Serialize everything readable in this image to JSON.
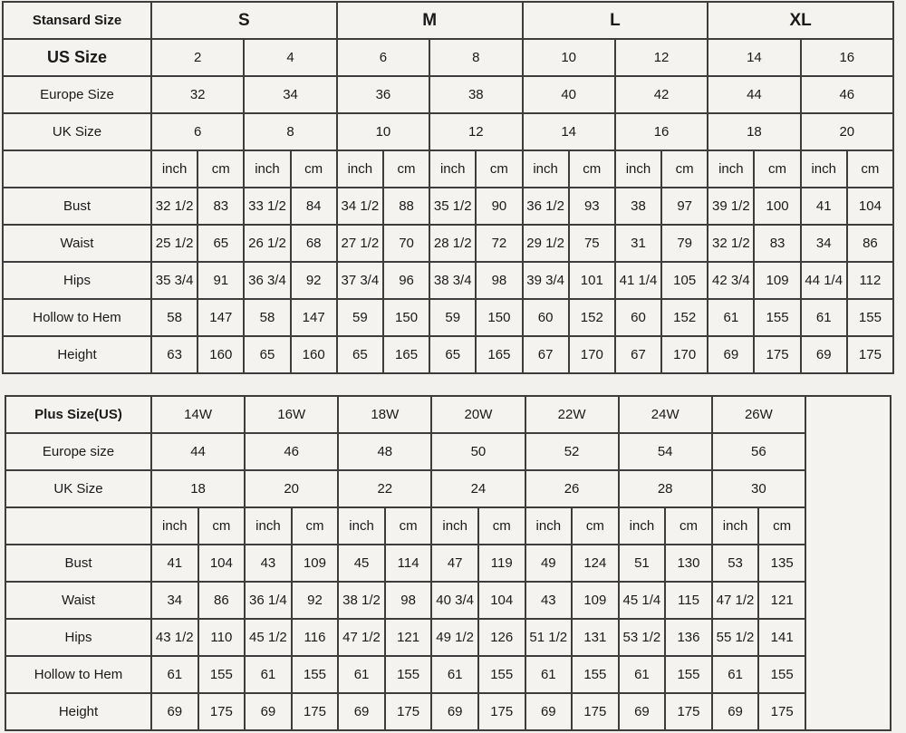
{
  "colors": {
    "page_background": "#f2f1ee",
    "cell_background": "#f4f3f0",
    "border": "#3d3d3d",
    "text": "#1a1a1a"
  },
  "chart_data": [
    {
      "type": "table",
      "name": "standard-size-chart",
      "title": "Stansard Size",
      "size_groups": [
        "S",
        "M",
        "L",
        "XL"
      ],
      "size_rows": [
        {
          "label": "US Size",
          "bold": true,
          "values": [
            "2",
            "4",
            "6",
            "8",
            "10",
            "12",
            "14",
            "16"
          ]
        },
        {
          "label": "Europe Size",
          "bold": false,
          "values": [
            "32",
            "34",
            "36",
            "38",
            "40",
            "42",
            "44",
            "46"
          ]
        },
        {
          "label": "UK Size",
          "bold": false,
          "values": [
            "6",
            "8",
            "10",
            "12",
            "14",
            "16",
            "18",
            "20"
          ]
        }
      ],
      "unit_labels": [
        "inch",
        "cm"
      ],
      "measurement_rows": [
        {
          "label": "Bust",
          "inch": [
            "32 1/2",
            "33 1/2",
            "34 1/2",
            "35 1/2",
            "36 1/2",
            "38",
            "39 1/2",
            "41"
          ],
          "cm": [
            "83",
            "84",
            "88",
            "90",
            "93",
            "97",
            "100",
            "104"
          ]
        },
        {
          "label": "Waist",
          "inch": [
            "25 1/2",
            "26 1/2",
            "27 1/2",
            "28 1/2",
            "29 1/2",
            "31",
            "32 1/2",
            "34"
          ],
          "cm": [
            "65",
            "68",
            "70",
            "72",
            "75",
            "79",
            "83",
            "86"
          ]
        },
        {
          "label": "Hips",
          "inch": [
            "35 3/4",
            "36 3/4",
            "37 3/4",
            "38 3/4",
            "39 3/4",
            "41 1/4",
            "42 3/4",
            "44 1/4"
          ],
          "cm": [
            "91",
            "92",
            "96",
            "98",
            "101",
            "105",
            "109",
            "112"
          ]
        },
        {
          "label": "Hollow to Hem",
          "inch": [
            "58",
            "58",
            "59",
            "59",
            "60",
            "60",
            "61",
            "61"
          ],
          "cm": [
            "147",
            "147",
            "150",
            "150",
            "152",
            "152",
            "155",
            "155"
          ]
        },
        {
          "label": "Height",
          "inch": [
            "63",
            "65",
            "65",
            "65",
            "67",
            "67",
            "69",
            "69"
          ],
          "cm": [
            "160",
            "160",
            "165",
            "165",
            "170",
            "170",
            "175",
            "175"
          ]
        }
      ],
      "trailing_blank_column": false
    },
    {
      "type": "table",
      "name": "plus-size-chart",
      "title": "Plus Size(US)",
      "size_groups": [
        "14W",
        "16W",
        "18W",
        "20W",
        "22W",
        "24W",
        "26W"
      ],
      "size_rows": [
        {
          "label": "Europe size",
          "bold": false,
          "values": [
            "44",
            "46",
            "48",
            "50",
            "52",
            "54",
            "56"
          ]
        },
        {
          "label": "UK Size",
          "bold": false,
          "values": [
            "18",
            "20",
            "22",
            "24",
            "26",
            "28",
            "30"
          ]
        }
      ],
      "unit_labels": [
        "inch",
        "cm"
      ],
      "measurement_rows": [
        {
          "label": "Bust",
          "inch": [
            "41",
            "43",
            "45",
            "47",
            "49",
            "51",
            "53"
          ],
          "cm": [
            "104",
            "109",
            "114",
            "119",
            "124",
            "130",
            "135"
          ]
        },
        {
          "label": "Waist",
          "inch": [
            "34",
            "36 1/4",
            "38 1/2",
            "40 3/4",
            "43",
            "45 1/4",
            "47 1/2"
          ],
          "cm": [
            "86",
            "92",
            "98",
            "104",
            "109",
            "115",
            "121"
          ]
        },
        {
          "label": "Hips",
          "inch": [
            "43 1/2",
            "45 1/2",
            "47 1/2",
            "49 1/2",
            "51 1/2",
            "53 1/2",
            "55 1/2"
          ],
          "cm": [
            "110",
            "116",
            "121",
            "126",
            "131",
            "136",
            "141"
          ]
        },
        {
          "label": "Hollow to Hem",
          "inch": [
            "61",
            "61",
            "61",
            "61",
            "61",
            "61",
            "61"
          ],
          "cm": [
            "155",
            "155",
            "155",
            "155",
            "155",
            "155",
            "155"
          ]
        },
        {
          "label": "Height",
          "inch": [
            "69",
            "69",
            "69",
            "69",
            "69",
            "69",
            "69"
          ],
          "cm": [
            "175",
            "175",
            "175",
            "175",
            "175",
            "175",
            "175"
          ]
        }
      ],
      "trailing_blank_column": true
    }
  ]
}
